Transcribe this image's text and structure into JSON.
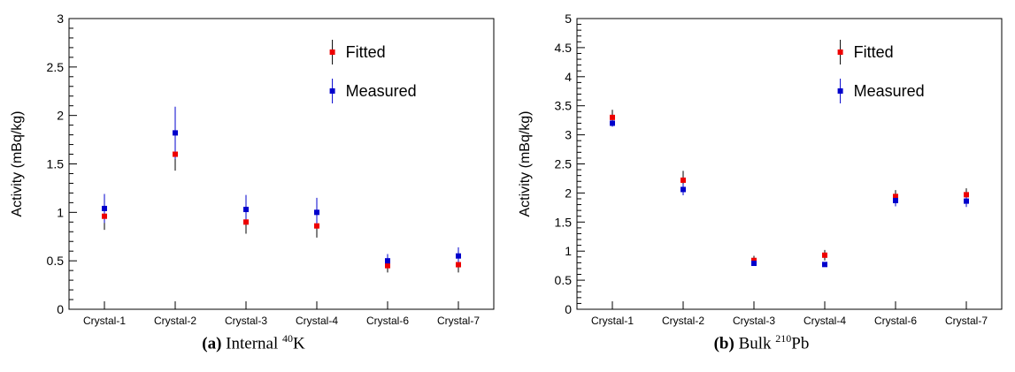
{
  "chart_data": [
    {
      "type": "scatter",
      "caption_tag": "(a)",
      "caption_text": "Internal",
      "caption_sup": "40",
      "caption_sym": "K",
      "ylabel": "Activity (mBq/kg)",
      "ylim": [
        0,
        3
      ],
      "yticks": [
        "0",
        "0.5",
        "1",
        "1.5",
        "2",
        "2.5",
        "3"
      ],
      "ytick_values": [
        0,
        0.5,
        1,
        1.5,
        2,
        2.5,
        3
      ],
      "categories": [
        "Crystal-1",
        "Crystal-2",
        "Crystal-3",
        "Crystal-4",
        "Crystal-6",
        "Crystal-7"
      ],
      "legend_placement": "top-right",
      "series": [
        {
          "name": "Fitted",
          "color": "#ee0000",
          "errcolor": "#000000",
          "values": [
            0.96,
            1.6,
            0.9,
            0.86,
            0.45,
            0.46
          ],
          "errors": [
            0.14,
            0.17,
            0.12,
            0.12,
            0.07,
            0.08
          ]
        },
        {
          "name": "Measured",
          "color": "#0000cc",
          "errcolor": "#0000cc",
          "values": [
            1.04,
            1.82,
            1.03,
            1.0,
            0.5,
            0.55
          ],
          "errors": [
            0.15,
            0.27,
            0.15,
            0.15,
            0.07,
            0.09
          ]
        }
      ]
    },
    {
      "type": "scatter",
      "caption_tag": "(b)",
      "caption_text": "Bulk",
      "caption_sup": "210",
      "caption_sym": "Pb",
      "ylabel": "Activity (mBq/kg)",
      "ylim": [
        0,
        5
      ],
      "yticks": [
        "0",
        "0.5",
        "1",
        "1.5",
        "2",
        "2.5",
        "3",
        "3.5",
        "4",
        "4.5",
        "5"
      ],
      "ytick_values": [
        0,
        0.5,
        1,
        1.5,
        2,
        2.5,
        3,
        3.5,
        4,
        4.5,
        5
      ],
      "categories": [
        "Crystal-1",
        "Crystal-2",
        "Crystal-3",
        "Crystal-4",
        "Crystal-6",
        "Crystal-7"
      ],
      "legend_placement": "top-right",
      "series": [
        {
          "name": "Fitted",
          "color": "#ee0000",
          "errcolor": "#000000",
          "values": [
            3.3,
            2.22,
            0.84,
            0.93,
            1.94,
            1.97
          ],
          "errors": [
            0.13,
            0.16,
            0.08,
            0.09,
            0.11,
            0.11
          ]
        },
        {
          "name": "Measured",
          "color": "#0000cc",
          "errcolor": "#0000cc",
          "values": [
            3.2,
            2.06,
            0.79,
            0.77,
            1.87,
            1.86
          ],
          "errors": [
            0.06,
            0.1,
            0.03,
            0.03,
            0.1,
            0.1
          ]
        }
      ]
    }
  ]
}
